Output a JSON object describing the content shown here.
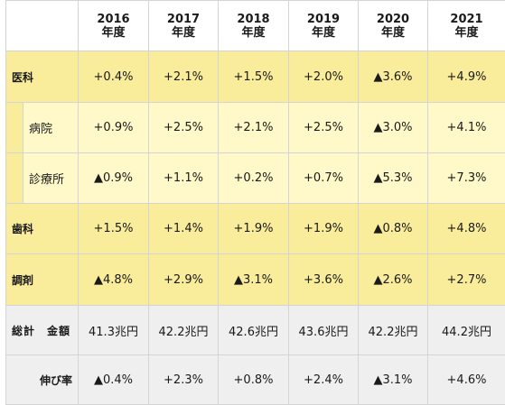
{
  "header": {
    "year_suffix": "年度",
    "years": [
      "2016",
      "2017",
      "2018",
      "2019",
      "2020",
      "2021"
    ]
  },
  "rows": [
    {
      "label": "医科",
      "values": [
        "+0.4%",
        "+2.1%",
        "+1.5%",
        "+2.0%",
        "▲3.6%",
        "+4.9%"
      ]
    },
    {
      "label": "病院",
      "values": [
        "+0.9%",
        "+2.5%",
        "+2.1%",
        "+2.5%",
        "▲3.0%",
        "+4.1%"
      ]
    },
    {
      "label": "診療所",
      "values": [
        "▲0.9%",
        "+1.1%",
        "+0.2%",
        "+0.7%",
        "▲5.3%",
        "+7.3%"
      ]
    },
    {
      "label": "歯科",
      "values": [
        "+1.5%",
        "+1.4%",
        "+1.9%",
        "+1.9%",
        "▲0.8%",
        "+4.8%"
      ]
    },
    {
      "label": "調剤",
      "values": [
        "▲4.8%",
        "+2.9%",
        "▲3.1%",
        "+3.6%",
        "▲2.6%",
        "+2.7%"
      ]
    },
    {
      "label": "総計　金額",
      "values": [
        "41.3兆円",
        "42.2兆円",
        "42.6兆円",
        "43.6兆円",
        "42.2兆円",
        "44.2兆円"
      ]
    },
    {
      "label": "伸び率",
      "values": [
        "▲0.4%",
        "+2.3%",
        "+0.8%",
        "+2.4%",
        "▲3.1%",
        "+4.6%"
      ]
    }
  ]
}
